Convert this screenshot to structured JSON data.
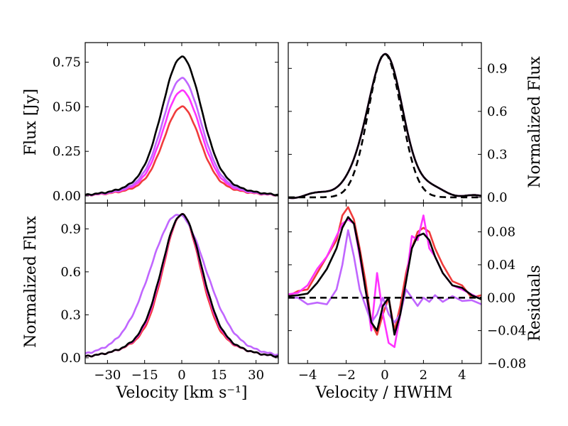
{
  "chart_data": [
    {
      "type": "line",
      "panel": "top-left",
      "xlabel": "",
      "ylabel": "Flux [Jy]",
      "xlim": [
        -39,
        39
      ],
      "ylim": [
        -0.04,
        0.86
      ],
      "xticks": [
        -30,
        -15,
        0,
        15,
        30
      ],
      "yticks": [
        0.0,
        0.25,
        0.5,
        0.75
      ],
      "ytick_labels": [
        "0.00",
        "0.25",
        "0.50",
        "0.75"
      ],
      "series": [
        {
          "name": "red",
          "color": "#f03c3c",
          "amp": 0.5,
          "width": 7.0,
          "wing": 0.16,
          "wingw": 16,
          "noise": 0.004
        },
        {
          "name": "magenta",
          "color": "#ff33ff",
          "amp": 0.59,
          "width": 7.2,
          "wing": 0.16,
          "wingw": 16,
          "noise": 0.004
        },
        {
          "name": "violet",
          "color": "#c066ff",
          "amp": 0.66,
          "width": 7.4,
          "wing": 0.16,
          "wingw": 16,
          "noise": 0.004
        },
        {
          "name": "black",
          "color": "#000000",
          "amp": 0.78,
          "width": 7.6,
          "wing": 0.16,
          "wingw": 16,
          "noise": 0.004
        }
      ]
    },
    {
      "type": "line",
      "panel": "top-right",
      "xlabel": "",
      "ylabel": "Normalized Flux",
      "xlim": [
        -5,
        5
      ],
      "ylim": [
        -0.04,
        1.08
      ],
      "xticks": [
        -4,
        -2,
        0,
        2,
        4
      ],
      "yticks": [
        0.0,
        0.3,
        0.6,
        0.9
      ],
      "ytick_labels": [
        "0.0",
        "0.3",
        "0.6",
        "0.9"
      ],
      "series": [
        {
          "name": "red",
          "color": "#f03c3c",
          "profile": "norm"
        },
        {
          "name": "magenta",
          "color": "#ff33ff",
          "profile": "norm"
        },
        {
          "name": "violet",
          "color": "#c066ff",
          "profile": "norm"
        },
        {
          "name": "black",
          "color": "#000000",
          "profile": "norm"
        },
        {
          "name": "gaussian model",
          "color": "#000000",
          "dashed": true,
          "profile": "gauss"
        }
      ]
    },
    {
      "type": "line",
      "panel": "bottom-left",
      "xlabel": "Velocity [km s⁻¹]",
      "ylabel": "Normalized Flux",
      "xlim": [
        -39,
        39
      ],
      "ylim": [
        -0.04,
        1.08
      ],
      "xticks": [
        -30,
        -15,
        0,
        15,
        30
      ],
      "xtick_labels": [
        "−30",
        "−15",
        "0",
        "15",
        "30"
      ],
      "yticks": [
        0.0,
        0.3,
        0.6,
        0.9
      ],
      "ytick_labels": [
        "0.0",
        "0.3",
        "0.6",
        "0.9"
      ],
      "series": [
        {
          "name": "red",
          "color": "#f03c3c",
          "amp": 1.0,
          "width": 7.0,
          "wing": 0.2,
          "wingw": 16,
          "noise": 0.006
        },
        {
          "name": "magenta",
          "color": "#ff33ff",
          "amp": 1.0,
          "width": 7.4,
          "wing": 0.2,
          "wingw": 16,
          "noise": 0.006
        },
        {
          "name": "violet",
          "color": "#c066ff",
          "amp": 1.0,
          "width": 10.5,
          "wing": 0.2,
          "wingw": 19,
          "noise": 0.006,
          "shift": -1.5
        },
        {
          "name": "black",
          "color": "#000000",
          "amp": 1.0,
          "width": 7.6,
          "wing": 0.2,
          "wingw": 16,
          "noise": 0.006
        }
      ]
    },
    {
      "type": "line",
      "panel": "bottom-right",
      "xlabel": "Velocity / HWHM",
      "ylabel": "Residuals",
      "xlim": [
        -5,
        5
      ],
      "ylim": [
        -0.08,
        0.115
      ],
      "xticks": [
        -4,
        -2,
        0,
        2,
        4
      ],
      "xtick_labels": [
        "−4",
        "−2",
        "0",
        "2",
        "4"
      ],
      "yticks": [
        -0.08,
        -0.04,
        0.0,
        0.04,
        0.08
      ],
      "ytick_labels": [
        "−0.08",
        "−0.04",
        "0.00",
        "0.04",
        "0.08"
      ],
      "series": [
        {
          "name": "red",
          "color": "#f03c3c",
          "x": [
            -5,
            -4.5,
            -4,
            -3.5,
            -3,
            -2.5,
            -2.2,
            -1.9,
            -1.6,
            -1.3,
            -1.0,
            -0.7,
            -0.4,
            -0.1,
            0.2,
            0.5,
            0.8,
            1.1,
            1.4,
            1.7,
            2.0,
            2.3,
            2.6,
            3.0,
            3.5,
            4.0,
            4.5,
            5
          ],
          "y": [
            0.002,
            0.008,
            0.01,
            0.03,
            0.05,
            0.07,
            0.1,
            0.11,
            0.095,
            0.06,
            0.02,
            -0.03,
            -0.045,
            -0.02,
            0.0,
            -0.04,
            -0.01,
            0.03,
            0.06,
            0.08,
            0.085,
            0.08,
            0.06,
            0.04,
            0.02,
            0.015,
            0.0,
            0.003
          ]
        },
        {
          "name": "magenta",
          "color": "#ff33ff",
          "x": [
            -5,
            -4.5,
            -4,
            -3.5,
            -3,
            -2.5,
            -2.2,
            -1.9,
            -1.6,
            -1.3,
            -1.0,
            -0.7,
            -0.4,
            -0.1,
            0.2,
            0.5,
            0.8,
            1.1,
            1.4,
            1.7,
            2.0,
            2.3,
            2.6,
            3.0,
            3.5,
            4.0,
            4.5,
            5
          ],
          "y": [
            0.004,
            0.006,
            0.015,
            0.035,
            0.05,
            0.075,
            0.09,
            0.095,
            0.09,
            0.05,
            0.01,
            -0.04,
            0.03,
            -0.02,
            -0.055,
            -0.06,
            -0.02,
            0.02,
            0.075,
            0.07,
            0.1,
            0.06,
            0.05,
            0.03,
            0.015,
            0.01,
            0.004,
            -0.002
          ]
        },
        {
          "name": "violet",
          "color": "#c066ff",
          "x": [
            -5,
            -4.5,
            -4,
            -3.5,
            -3,
            -2.5,
            -2.2,
            -1.9,
            -1.6,
            -1.3,
            -1.0,
            -0.7,
            -0.4,
            -0.1,
            0.2,
            0.5,
            0.8,
            1.1,
            1.4,
            1.7,
            2.0,
            2.3,
            2.6,
            3.0,
            3.5,
            4.0,
            4.5,
            5
          ],
          "y": [
            0.0,
            0.0,
            -0.008,
            -0.006,
            -0.008,
            0.01,
            0.04,
            0.082,
            0.05,
            0.01,
            -0.01,
            -0.03,
            -0.02,
            0.0,
            -0.02,
            -0.03,
            -0.02,
            0.01,
            0.0,
            -0.01,
            0.0,
            -0.005,
            0.003,
            -0.005,
            0.002,
            -0.004,
            -0.003,
            -0.008
          ]
        },
        {
          "name": "black",
          "color": "#000000",
          "x": [
            -5,
            -4.5,
            -4,
            -3.5,
            -3,
            -2.5,
            -2.2,
            -1.9,
            -1.6,
            -1.3,
            -1.0,
            -0.7,
            -0.4,
            -0.1,
            0.2,
            0.5,
            0.8,
            1.1,
            1.4,
            1.7,
            2.0,
            2.3,
            2.6,
            3.0,
            3.5,
            4.0,
            4.5,
            5
          ],
          "y": [
            0.002,
            0.003,
            0.005,
            0.018,
            0.035,
            0.06,
            0.085,
            0.098,
            0.09,
            0.055,
            0.01,
            -0.03,
            -0.04,
            -0.01,
            0.0,
            -0.045,
            -0.02,
            0.02,
            0.06,
            0.075,
            0.078,
            0.07,
            0.05,
            0.03,
            0.015,
            0.012,
            0.003,
            -0.002
          ]
        },
        {
          "name": "zero line",
          "color": "#000000",
          "dashed": true,
          "x": [
            -5,
            5
          ],
          "y": [
            0,
            0
          ]
        }
      ]
    }
  ]
}
